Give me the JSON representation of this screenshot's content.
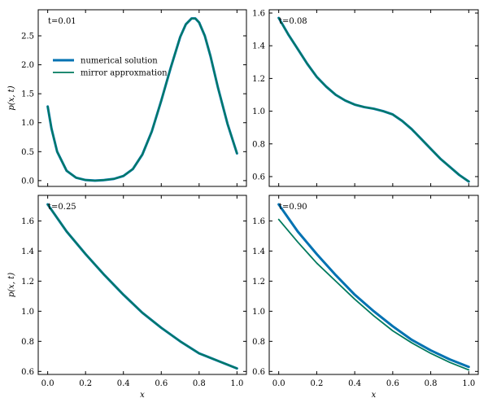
{
  "chart_data": [
    {
      "type": "line",
      "annotation": "t=0.01",
      "xlabel": "",
      "ylabel": "p(x, t)",
      "xlim": [
        -0.05,
        1.05
      ],
      "ylim": [
        -0.1,
        2.95
      ],
      "xticks": [
        0.0,
        0.2,
        0.4,
        0.6,
        0.8,
        1.0
      ],
      "xtick_labels": [
        "",
        "",
        "",
        "",
        "",
        ""
      ],
      "yticks": [
        0.0,
        0.5,
        1.0,
        1.5,
        2.0,
        2.5
      ],
      "ytick_labels": [
        "0.0",
        "0.5",
        "1.0",
        "1.5",
        "2.0",
        "2.5"
      ],
      "legend_position": "center-left",
      "series": [
        {
          "name": "numerical solution",
          "color": "#0072b2",
          "x": [
            0.0,
            0.02,
            0.05,
            0.1,
            0.15,
            0.2,
            0.25,
            0.3,
            0.35,
            0.4,
            0.45,
            0.5,
            0.55,
            0.6,
            0.65,
            0.7,
            0.73,
            0.76,
            0.78,
            0.8,
            0.83,
            0.86,
            0.9,
            0.95,
            1.0
          ],
          "y": [
            1.28,
            0.9,
            0.5,
            0.17,
            0.05,
            0.01,
            0.0,
            0.01,
            0.03,
            0.08,
            0.2,
            0.45,
            0.85,
            1.38,
            1.95,
            2.48,
            2.7,
            2.8,
            2.8,
            2.73,
            2.5,
            2.15,
            1.6,
            0.98,
            0.47
          ]
        },
        {
          "name": "mirror approxmation",
          "color": "#007a5e",
          "x": [
            0.0,
            0.02,
            0.05,
            0.1,
            0.15,
            0.2,
            0.25,
            0.3,
            0.35,
            0.4,
            0.45,
            0.5,
            0.55,
            0.6,
            0.65,
            0.7,
            0.73,
            0.76,
            0.78,
            0.8,
            0.83,
            0.86,
            0.9,
            0.95,
            1.0
          ],
          "y": [
            1.28,
            0.9,
            0.5,
            0.17,
            0.05,
            0.01,
            0.0,
            0.01,
            0.03,
            0.08,
            0.2,
            0.45,
            0.85,
            1.38,
            1.95,
            2.48,
            2.7,
            2.8,
            2.8,
            2.73,
            2.5,
            2.15,
            1.6,
            0.98,
            0.47
          ]
        }
      ]
    },
    {
      "type": "line",
      "annotation": "t=0.08",
      "xlabel": "",
      "ylabel": "",
      "xlim": [
        -0.05,
        1.05
      ],
      "ylim": [
        0.54,
        1.62
      ],
      "xticks": [
        0.0,
        0.2,
        0.4,
        0.6,
        0.8,
        1.0
      ],
      "xtick_labels": [
        "",
        "",
        "",
        "",
        "",
        ""
      ],
      "yticks": [
        0.6,
        0.8,
        1.0,
        1.2,
        1.4,
        1.6
      ],
      "ytick_labels": [
        "0.6",
        "0.8",
        "1.0",
        "1.2",
        "1.4",
        "1.6"
      ],
      "series": [
        {
          "color": "#0072b2",
          "x": [
            0.0,
            0.05,
            0.1,
            0.15,
            0.2,
            0.25,
            0.3,
            0.35,
            0.4,
            0.45,
            0.5,
            0.55,
            0.6,
            0.65,
            0.7,
            0.75,
            0.8,
            0.85,
            0.9,
            0.95,
            1.0
          ],
          "y": [
            1.57,
            1.47,
            1.38,
            1.29,
            1.21,
            1.15,
            1.1,
            1.065,
            1.04,
            1.025,
            1.015,
            1.0,
            0.98,
            0.94,
            0.89,
            0.83,
            0.77,
            0.71,
            0.66,
            0.61,
            0.57
          ]
        },
        {
          "color": "#007a5e",
          "x": [
            0.0,
            0.05,
            0.1,
            0.15,
            0.2,
            0.25,
            0.3,
            0.35,
            0.4,
            0.45,
            0.5,
            0.55,
            0.6,
            0.65,
            0.7,
            0.75,
            0.8,
            0.85,
            0.9,
            0.95,
            1.0
          ],
          "y": [
            1.57,
            1.47,
            1.38,
            1.29,
            1.21,
            1.15,
            1.1,
            1.065,
            1.04,
            1.025,
            1.015,
            1.0,
            0.98,
            0.94,
            0.89,
            0.83,
            0.77,
            0.71,
            0.66,
            0.61,
            0.57
          ]
        }
      ]
    },
    {
      "type": "line",
      "annotation": "t=0.25",
      "xlabel": "x",
      "ylabel": "p(x, t)",
      "xlim": [
        -0.05,
        1.05
      ],
      "ylim": [
        0.58,
        1.77
      ],
      "xticks": [
        0.0,
        0.2,
        0.4,
        0.6,
        0.8,
        1.0
      ],
      "xtick_labels": [
        "0.0",
        "0.2",
        "0.4",
        "0.6",
        "0.8",
        "1.0"
      ],
      "yticks": [
        0.6,
        0.8,
        1.0,
        1.2,
        1.4,
        1.6
      ],
      "ytick_labels": [
        "0.6",
        "0.8",
        "1.0",
        "1.2",
        "1.4",
        "1.6"
      ],
      "series": [
        {
          "color": "#0072b2",
          "x": [
            0.0,
            0.1,
            0.2,
            0.3,
            0.4,
            0.5,
            0.6,
            0.7,
            0.8,
            0.9,
            1.0
          ],
          "y": [
            1.71,
            1.53,
            1.38,
            1.24,
            1.11,
            0.99,
            0.89,
            0.8,
            0.72,
            0.67,
            0.62
          ]
        },
        {
          "color": "#007a5e",
          "x": [
            0.0,
            0.1,
            0.2,
            0.3,
            0.4,
            0.5,
            0.6,
            0.7,
            0.8,
            0.9,
            1.0
          ],
          "y": [
            1.71,
            1.53,
            1.38,
            1.24,
            1.11,
            0.99,
            0.89,
            0.8,
            0.72,
            0.67,
            0.62
          ]
        }
      ]
    },
    {
      "type": "line",
      "annotation": "t=0.90",
      "xlabel": "x",
      "ylabel": "",
      "xlim": [
        -0.05,
        1.05
      ],
      "ylim": [
        0.58,
        1.77
      ],
      "xticks": [
        0.0,
        0.2,
        0.4,
        0.6,
        0.8,
        1.0
      ],
      "xtick_labels": [
        "0.0",
        "0.2",
        "0.4",
        "0.6",
        "0.8",
        "1.0"
      ],
      "yticks": [
        0.6,
        0.8,
        1.0,
        1.2,
        1.4,
        1.6
      ],
      "ytick_labels": [
        "0.6",
        "0.8",
        "1.0",
        "1.2",
        "1.4",
        "1.6"
      ],
      "series": [
        {
          "color": "#0072b2",
          "x": [
            0.0,
            0.1,
            0.2,
            0.3,
            0.4,
            0.5,
            0.6,
            0.7,
            0.8,
            0.9,
            1.0
          ],
          "y": [
            1.71,
            1.53,
            1.38,
            1.24,
            1.11,
            1.0,
            0.9,
            0.81,
            0.74,
            0.68,
            0.63
          ]
        },
        {
          "color": "#007a5e",
          "x": [
            0.0,
            0.1,
            0.2,
            0.3,
            0.4,
            0.5,
            0.6,
            0.7,
            0.8,
            0.9,
            1.0
          ],
          "y": [
            1.61,
            1.46,
            1.32,
            1.2,
            1.08,
            0.97,
            0.87,
            0.79,
            0.72,
            0.66,
            0.61
          ]
        }
      ]
    }
  ]
}
